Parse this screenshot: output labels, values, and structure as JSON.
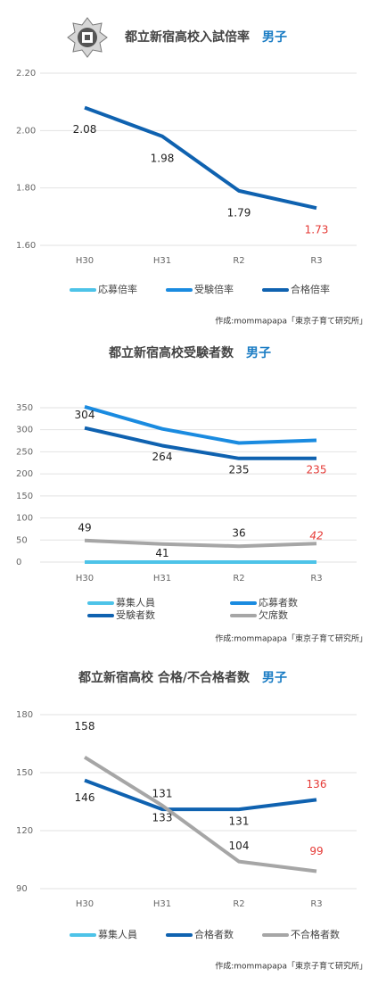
{
  "chart_data": [
    {
      "type": "line",
      "title": "都立新宿高校入試倍率",
      "title_note": "男子",
      "categories": [
        "H30",
        "H31",
        "R2",
        "R3"
      ],
      "series": [
        {
          "name": "応募倍率",
          "color": "#4dc3e8",
          "values": [
            null,
            null,
            null,
            null
          ]
        },
        {
          "name": "受験倍率",
          "color": "#1a8be0",
          "values": [
            null,
            null,
            null,
            null
          ]
        },
        {
          "name": "合格倍率",
          "color": "#0f62b0",
          "values": [
            2.08,
            1.98,
            1.79,
            1.73
          ],
          "data_labels": true
        }
      ],
      "ylim": [
        1.6,
        2.2
      ],
      "yticks": [
        {
          "value": 1.6,
          "label": "1.60"
        },
        {
          "value": 1.8,
          "label": "1.80"
        },
        {
          "value": 2.0,
          "label": "2.00"
        },
        {
          "value": 2.2,
          "label": "2.20"
        }
      ],
      "grid": true,
      "last_label_color": "#e53935",
      "credit": "作成:mommapapa「東京子育て研究所」"
    },
    {
      "type": "line",
      "title": "都立新宿高校受験者数",
      "title_note": "男子",
      "categories": [
        "H30",
        "H31",
        "R2",
        "R3"
      ],
      "series": [
        {
          "name": "募集人員",
          "color": "#4dc3e8",
          "values": [
            0,
            0,
            0,
            0
          ]
        },
        {
          "name": "応募者数",
          "color": "#1a8be0",
          "values": [
            352,
            302,
            270,
            276
          ]
        },
        {
          "name": "受験者数",
          "color": "#0f62b0",
          "values": [
            304,
            264,
            235,
            235
          ],
          "data_labels": true
        },
        {
          "name": "欠席数",
          "color": "#a6a6a6",
          "values": [
            49,
            41,
            36,
            42
          ],
          "data_labels": true
        }
      ],
      "ylim": [
        0,
        360
      ],
      "yticks": [
        0,
        50,
        100,
        150,
        200,
        250,
        300,
        350
      ],
      "grid": true,
      "last_label_color": "#e53935",
      "credit": "作成:mommapapa「東京子育て研究所」"
    },
    {
      "type": "line",
      "title": "都立新宿高校 合格/不合格者数",
      "title_note": "男子",
      "categories": [
        "H30",
        "H31",
        "R2",
        "R3"
      ],
      "series": [
        {
          "name": "募集人員",
          "color": "#4dc3e8",
          "values": [
            null,
            null,
            null,
            null
          ]
        },
        {
          "name": "合格者数",
          "color": "#0f62b0",
          "values": [
            146,
            131,
            131,
            136
          ],
          "data_labels": true
        },
        {
          "name": "不合格者数",
          "color": "#a6a6a6",
          "values": [
            158,
            133,
            104,
            99
          ],
          "data_labels": true
        }
      ],
      "ylim": [
        90,
        180
      ],
      "yticks": [
        90,
        120,
        150,
        180
      ],
      "grid": true,
      "last_label_color": "#e53935",
      "credit": "作成:mommapapa「東京子育て研究所」"
    }
  ]
}
